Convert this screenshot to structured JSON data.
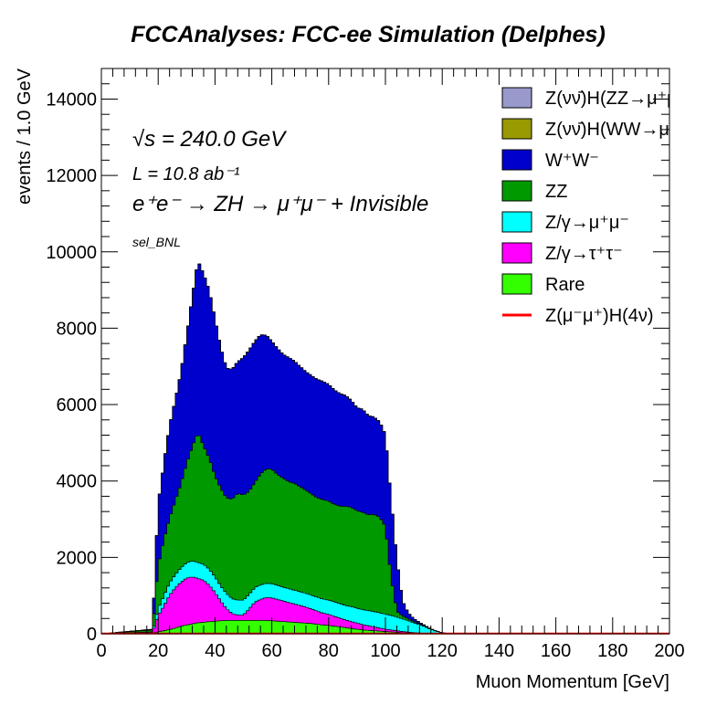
{
  "chart_data": {
    "type": "area",
    "title": "FCCAnalyses: FCC-ee Simulation (Delphes)",
    "xlabel": "Muon Momentum [GeV]",
    "ylabel": "events / 1.0 GeV",
    "xlim": [
      0,
      200
    ],
    "ylim": [
      0,
      14800
    ],
    "xticks": [
      "0",
      "20",
      "40",
      "60",
      "80",
      "100",
      "120",
      "140",
      "160",
      "180",
      "200"
    ],
    "yticks": [
      "0",
      "2000",
      "4000",
      "6000",
      "8000",
      "10000",
      "12000",
      "14000"
    ],
    "stacked": true,
    "grid": false,
    "legend_position": "top-right",
    "annotations": {
      "sqrt_s": "√s = 240.0 GeV",
      "lumi": "L = 10.8 ab⁻¹",
      "process": "e⁺e⁻ → ZH → μ⁺μ⁻ + Invisible",
      "selection": "sel_BNL"
    },
    "series": [
      {
        "name": "Rare",
        "color": "#33ff00",
        "x": [
          0,
          18,
          20,
          22,
          24,
          26,
          28,
          30,
          32,
          34,
          36,
          38,
          40,
          42,
          44,
          46,
          48,
          50,
          52,
          54,
          56,
          58,
          60,
          62,
          64,
          66,
          68,
          70,
          72,
          74,
          76,
          78,
          80,
          82,
          84,
          86,
          88,
          90,
          92,
          94,
          96,
          98,
          100,
          102,
          104,
          106,
          108,
          110,
          112,
          114,
          116,
          118,
          120,
          122,
          200
        ],
        "values": [
          0,
          20,
          50,
          80,
          110,
          150,
          200,
          230,
          260,
          290,
          300,
          320,
          330,
          340,
          350,
          350,
          350,
          350,
          350,
          350,
          350,
          350,
          340,
          330,
          320,
          310,
          300,
          290,
          280,
          270,
          250,
          230,
          220,
          200,
          180,
          160,
          140,
          120,
          100,
          90,
          80,
          70,
          60,
          50,
          40,
          30,
          25,
          20,
          15,
          10,
          5,
          3,
          0,
          0,
          0
        ]
      },
      {
        "name": "Z/γ→τ⁺τ⁻",
        "color": "#ff00ff",
        "x": [
          0,
          18,
          20,
          22,
          24,
          26,
          28,
          30,
          32,
          34,
          36,
          38,
          40,
          42,
          44,
          46,
          48,
          50,
          52,
          54,
          56,
          58,
          60,
          62,
          64,
          66,
          68,
          70,
          72,
          74,
          76,
          78,
          80,
          82,
          84,
          86,
          88,
          90,
          92,
          94,
          96,
          98,
          100,
          102,
          104,
          106,
          108,
          110,
          112,
          114,
          116,
          118,
          120,
          122,
          200
        ],
        "values": [
          0,
          20,
          430,
          650,
          900,
          1050,
          1150,
          1230,
          1230,
          1160,
          1100,
          950,
          750,
          520,
          310,
          180,
          140,
          140,
          300,
          480,
          550,
          600,
          600,
          570,
          540,
          510,
          480,
          450,
          420,
          380,
          340,
          310,
          290,
          260,
          230,
          200,
          180,
          160,
          140,
          120,
          100,
          80,
          60,
          50,
          40,
          30,
          20,
          10,
          5,
          3,
          2,
          1,
          0,
          0,
          0
        ]
      },
      {
        "name": "Z/γ→μ⁺μ⁻",
        "color": "#00ffff",
        "x": [
          0,
          18,
          20,
          22,
          24,
          26,
          28,
          30,
          32,
          34,
          36,
          38,
          40,
          42,
          44,
          46,
          48,
          50,
          52,
          54,
          56,
          58,
          60,
          62,
          64,
          66,
          68,
          70,
          72,
          74,
          76,
          78,
          80,
          82,
          84,
          86,
          88,
          90,
          92,
          94,
          96,
          98,
          100,
          102,
          104,
          106,
          108,
          110,
          112,
          114,
          116,
          118,
          120,
          122,
          200
        ],
        "values": [
          0,
          10,
          180,
          270,
          320,
          350,
          380,
          400,
          420,
          420,
          420,
          420,
          410,
          400,
          400,
          390,
          390,
          390,
          380,
          380,
          380,
          370,
          370,
          370,
          360,
          360,
          360,
          360,
          360,
          360,
          370,
          370,
          370,
          380,
          380,
          380,
          390,
          390,
          390,
          400,
          400,
          400,
          390,
          380,
          360,
          330,
          300,
          260,
          220,
          170,
          110,
          60,
          30,
          0,
          0
        ]
      },
      {
        "name": "ZZ",
        "color": "#009900",
        "x": [
          0,
          18,
          20,
          22,
          24,
          26,
          28,
          30,
          32,
          34,
          36,
          38,
          40,
          42,
          44,
          46,
          48,
          50,
          52,
          54,
          56,
          58,
          60,
          62,
          64,
          66,
          68,
          70,
          72,
          74,
          76,
          78,
          80,
          82,
          84,
          86,
          88,
          90,
          92,
          94,
          96,
          98,
          100,
          102,
          104,
          106,
          108,
          110,
          112,
          114,
          116,
          118,
          120,
          122,
          200
        ],
        "values": [
          0,
          50,
          1130,
          1480,
          1700,
          1930,
          2200,
          2600,
          3000,
          3400,
          3100,
          2900,
          2650,
          2550,
          2500,
          2600,
          2800,
          2750,
          2700,
          2750,
          2900,
          3000,
          3000,
          2900,
          2850,
          2800,
          2800,
          2750,
          2700,
          2650,
          2600,
          2600,
          2600,
          2550,
          2550,
          2600,
          2600,
          2550,
          2550,
          2500,
          2550,
          2500,
          2300,
          1000,
          150,
          80,
          50,
          30,
          20,
          10,
          5,
          2,
          0,
          0,
          0
        ]
      },
      {
        "name": "W⁺W⁻",
        "color": "#0000cc",
        "x": [
          0,
          18,
          20,
          22,
          24,
          26,
          28,
          30,
          32,
          34,
          36,
          38,
          40,
          42,
          44,
          46,
          48,
          50,
          52,
          54,
          56,
          58,
          60,
          62,
          64,
          66,
          68,
          70,
          72,
          74,
          76,
          78,
          80,
          82,
          84,
          86,
          88,
          90,
          92,
          94,
          96,
          98,
          100,
          102,
          104,
          106,
          108,
          110,
          112,
          114,
          116,
          118,
          120,
          122,
          200
        ],
        "values": [
          0,
          20,
          1600,
          2000,
          2400,
          2650,
          2900,
          3350,
          3900,
          4500,
          4500,
          4400,
          4100,
          3700,
          3400,
          3400,
          3450,
          3600,
          3700,
          3700,
          3650,
          3500,
          3350,
          3300,
          3250,
          3250,
          3200,
          3150,
          3100,
          3100,
          3100,
          3100,
          3050,
          3000,
          2950,
          2900,
          2800,
          2700,
          2700,
          2600,
          2550,
          2500,
          2400,
          2050,
          1350,
          400,
          150,
          80,
          40,
          20,
          10,
          5,
          0,
          0,
          0
        ]
      },
      {
        "name": "Z(νν̄)H(WW→μ⁺νμ⁻ν̄)",
        "color": "#999900",
        "x": [
          0,
          18,
          20,
          22,
          24,
          26,
          28,
          30,
          32,
          34,
          36,
          38,
          40,
          42,
          44,
          46,
          48,
          50,
          52,
          54,
          56,
          58,
          60,
          62,
          64,
          66,
          68,
          70,
          72,
          74,
          76,
          78,
          80,
          82,
          84,
          86,
          88,
          90,
          92,
          94,
          96,
          98,
          100,
          102,
          104,
          106,
          108,
          110,
          112,
          114,
          116,
          118,
          120,
          122,
          200
        ],
        "values": [
          0,
          0,
          0,
          0,
          0,
          0,
          0,
          0,
          0,
          0,
          0,
          0,
          0,
          0,
          0,
          0,
          0,
          0,
          0,
          0,
          0,
          0,
          0,
          0,
          0,
          0,
          0,
          0,
          0,
          0,
          0,
          0,
          0,
          0,
          0,
          0,
          0,
          0,
          0,
          0,
          0,
          0,
          0,
          0,
          0,
          0,
          0,
          0,
          0,
          0,
          0,
          0,
          0,
          0,
          0
        ]
      },
      {
        "name": "Z(νν̄)H(ZZ→μ⁺μ⁻νν̄)",
        "color": "#9999cc",
        "x": [
          0,
          18,
          20,
          22,
          24,
          26,
          28,
          30,
          32,
          34,
          36,
          38,
          40,
          42,
          44,
          46,
          48,
          50,
          52,
          54,
          56,
          58,
          60,
          62,
          64,
          66,
          68,
          70,
          72,
          74,
          76,
          78,
          80,
          82,
          84,
          86,
          88,
          90,
          92,
          94,
          96,
          98,
          100,
          102,
          104,
          106,
          108,
          110,
          112,
          114,
          116,
          118,
          120,
          122,
          200
        ],
        "values": [
          0,
          0,
          0,
          0,
          0,
          0,
          0,
          0,
          0,
          0,
          0,
          0,
          0,
          0,
          0,
          0,
          0,
          0,
          0,
          0,
          0,
          0,
          0,
          0,
          0,
          0,
          0,
          0,
          0,
          0,
          0,
          0,
          0,
          0,
          0,
          0,
          0,
          0,
          0,
          0,
          0,
          0,
          0,
          0,
          0,
          0,
          0,
          0,
          0,
          0,
          0,
          0,
          0,
          0,
          0
        ]
      },
      {
        "name": "Z(μ⁻μ⁺)H(4ν)",
        "color": "#ff0000",
        "line": true,
        "x": [
          0,
          200
        ],
        "values": [
          5,
          5
        ]
      }
    ]
  }
}
